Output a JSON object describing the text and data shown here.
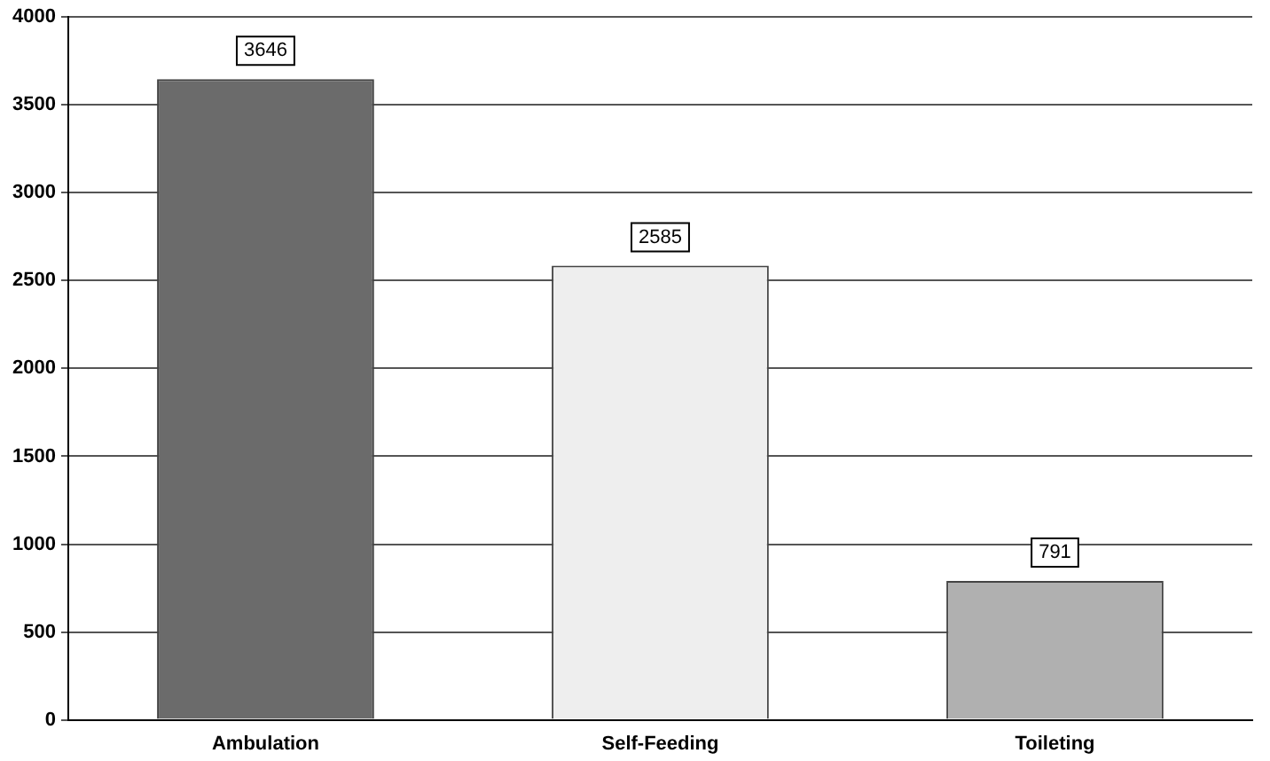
{
  "chart_data": {
    "type": "bar",
    "categories": [
      "Ambulation",
      "Self-Feeding",
      "Toileting"
    ],
    "values": [
      3646,
      2585,
      791
    ],
    "colors": [
      "#6b6b6b",
      "#eeeeee",
      "#b0b0b0"
    ],
    "ylim": [
      0,
      4000
    ],
    "yticks": [
      0,
      500,
      1000,
      1500,
      2000,
      2500,
      3000,
      3500,
      4000
    ],
    "grid": "y",
    "data_labels": true
  }
}
